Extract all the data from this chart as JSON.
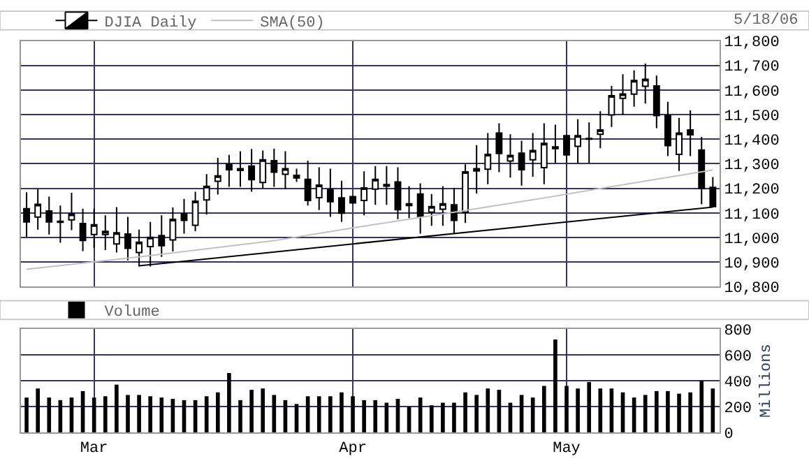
{
  "chart_data": [
    {
      "type": "candlestick",
      "legend": "top",
      "grid": true,
      "tick_labels": "y",
      "annotations": [
        "5/18/06"
      ],
      "categories": [
        null,
        null,
        null,
        null,
        null,
        null,
        null,
        null,
        null,
        null,
        null,
        null,
        null,
        null,
        null,
        null,
        null,
        null,
        null,
        null,
        null,
        null,
        null,
        null,
        null,
        null,
        null,
        null,
        null,
        null,
        null,
        null,
        null,
        null,
        null,
        null,
        null,
        null,
        null,
        null,
        null,
        null,
        null,
        null,
        null,
        null,
        null,
        null,
        null,
        null,
        null,
        null,
        null,
        null,
        null,
        null,
        null,
        null,
        null,
        null,
        null,
        null
      ],
      "ylim": [
        10800,
        11800
      ],
      "yticks": [
        {
          "value": 10800,
          "label": "10,800"
        },
        {
          "value": 10900,
          "label": "10,900"
        },
        {
          "value": 11000,
          "label": "11,000"
        },
        {
          "value": 11100,
          "label": "11,100"
        },
        {
          "value": 11200,
          "label": "11,200"
        },
        {
          "value": 11300,
          "label": "11,300"
        },
        {
          "value": 11400,
          "label": "11,400"
        },
        {
          "value": 11500,
          "label": "11,500"
        },
        {
          "value": 11600,
          "label": "11,600"
        },
        {
          "value": 11700,
          "label": "11,700"
        },
        {
          "value": 11800,
          "label": "11,800"
        }
      ],
      "series": [
        {
          "name": "DJIA Daily",
          "type": "candlestick",
          "color": "#000000",
          "ohlc": [
            [
              11117,
              11184,
              11003,
              11063
            ],
            [
              11083,
              11197,
              11032,
              11135
            ],
            [
              11108,
              11166,
              11012,
              11063
            ],
            [
              11066,
              11130,
              10979,
              11062
            ],
            [
              11072,
              11182,
              11030,
              11095
            ],
            [
              11057,
              11117,
              10945,
              10988
            ],
            [
              11012,
              11117,
              10958,
              11052
            ],
            [
              11012,
              11090,
              10949,
              11025
            ],
            [
              10974,
              11124,
              10939,
              11019
            ],
            [
              11014,
              11084,
              10907,
              10956
            ],
            [
              10939,
              11032,
              10882,
              10981
            ],
            [
              10963,
              11063,
              10882,
              11001
            ],
            [
              11008,
              11090,
              10921,
              10967
            ],
            [
              10990,
              11122,
              10943,
              11074
            ],
            [
              11097,
              11157,
              11016,
              11070
            ],
            [
              11050,
              11186,
              11026,
              11148
            ],
            [
              11153,
              11258,
              11093,
              11208
            ],
            [
              11229,
              11324,
              11175,
              11251
            ],
            [
              11298,
              11336,
              11206,
              11276
            ],
            [
              11280,
              11351,
              11206,
              11273
            ],
            [
              11291,
              11360,
              11186,
              11235
            ],
            [
              11224,
              11354,
              11199,
              11316
            ],
            [
              11313,
              11362,
              11206,
              11266
            ],
            [
              11257,
              11351,
              11197,
              11280
            ],
            [
              11253,
              11280,
              11226,
              11242
            ],
            [
              11237,
              11313,
              11130,
              11151
            ],
            [
              11162,
              11286,
              11112,
              11213
            ],
            [
              11195,
              11280,
              11084,
              11146
            ],
            [
              11161,
              11231,
              11063,
              11099
            ],
            [
              11166,
              11170,
              11137,
              11141
            ],
            [
              11151,
              11269,
              11090,
              11202
            ],
            [
              11197,
              11291,
              11133,
              11237
            ],
            [
              11209,
              11291,
              11133,
              11215
            ],
            [
              11226,
              11286,
              11075,
              11113
            ],
            [
              11137,
              11209,
              11079,
              11130
            ],
            [
              11177,
              11220,
              11016,
              11086
            ],
            [
              11103,
              11177,
              11048,
              11126
            ],
            [
              11115,
              11209,
              11048,
              11137
            ],
            [
              11133,
              11202,
              11017,
              11070
            ],
            [
              11103,
              11298,
              11059,
              11267
            ],
            [
              11280,
              11376,
              11179,
              11271
            ],
            [
              11278,
              11425,
              11217,
              11338
            ],
            [
              11425,
              11465,
              11266,
              11342
            ],
            [
              11311,
              11420,
              11244,
              11334
            ],
            [
              11343,
              11394,
              11211,
              11276
            ],
            [
              11316,
              11425,
              11247,
              11354
            ],
            [
              11284,
              11465,
              11217,
              11383
            ],
            [
              11362,
              11459,
              11302,
              11369
            ],
            [
              11414,
              11420,
              11302,
              11336
            ],
            [
              11371,
              11481,
              11302,
              11414
            ],
            [
              11400,
              11468,
              11302,
              11403
            ],
            [
              11420,
              11514,
              11363,
              11438
            ],
            [
              11499,
              11617,
              11450,
              11577
            ],
            [
              11566,
              11664,
              11499,
              11584
            ],
            [
              11583,
              11680,
              11532,
              11639
            ],
            [
              11615,
              11708,
              11545,
              11644
            ],
            [
              11617,
              11659,
              11445,
              11496
            ],
            [
              11496,
              11552,
              11331,
              11374
            ],
            [
              11338,
              11487,
              11271,
              11425
            ],
            [
              11438,
              11517,
              11331,
              11418
            ],
            [
              11356,
              11409,
              11135,
              11199
            ],
            [
              11204,
              11246,
              11126,
              11126
            ]
          ]
        },
        {
          "name": "SMA(50)",
          "type": "line",
          "color": "#c0c0c0",
          "values": [
            10871,
            null,
            null,
            null,
            null,
            null,
            null,
            null,
            null,
            null,
            10921,
            null,
            null,
            null,
            null,
            null,
            null,
            null,
            null,
            null,
            null,
            null,
            10987,
            null,
            null,
            null,
            null,
            null,
            null,
            11039,
            null,
            null,
            null,
            null,
            null,
            null,
            null,
            null,
            null,
            11110,
            null,
            null,
            null,
            null,
            null,
            null,
            11161,
            null,
            null,
            null,
            11192,
            null,
            null,
            null,
            null,
            null,
            null,
            null,
            null,
            null,
            null,
            11275
          ]
        },
        {
          "type": "line",
          "color": "#000000",
          "values": [
            null,
            null,
            null,
            null,
            null,
            null,
            null,
            null,
            null,
            null,
            10885,
            null,
            null,
            null,
            null,
            null,
            null,
            null,
            null,
            null,
            null,
            null,
            null,
            null,
            null,
            null,
            null,
            null,
            null,
            null,
            null,
            null,
            null,
            null,
            null,
            null,
            null,
            null,
            null,
            null,
            null,
            null,
            null,
            null,
            null,
            null,
            null,
            null,
            null,
            null,
            null,
            null,
            null,
            null,
            null,
            null,
            null,
            null,
            null,
            null,
            null,
            11124
          ]
        }
      ]
    },
    {
      "type": "bar",
      "legend": "top",
      "grid": true,
      "ylabel": "Millions",
      "categories": [
        null,
        null,
        null,
        null,
        null,
        null,
        "Mar",
        null,
        null,
        null,
        null,
        null,
        null,
        null,
        null,
        null,
        null,
        null,
        null,
        null,
        null,
        null,
        null,
        null,
        null,
        null,
        null,
        null,
        null,
        "Apr",
        null,
        null,
        null,
        null,
        null,
        null,
        null,
        null,
        null,
        null,
        null,
        null,
        null,
        null,
        null,
        null,
        null,
        null,
        "May",
        null,
        null,
        null,
        null,
        null,
        null,
        null,
        null,
        null,
        null,
        null,
        null,
        null
      ],
      "ylim": [
        0,
        800
      ],
      "yticks": [
        0,
        200,
        400,
        600,
        800
      ],
      "series": [
        {
          "name": "Volume",
          "color": "#000000",
          "values": [
            270,
            340,
            270,
            250,
            270,
            320,
            270,
            280,
            370,
            290,
            290,
            280,
            270,
            260,
            250,
            250,
            280,
            310,
            460,
            250,
            330,
            340,
            290,
            250,
            220,
            280,
            280,
            280,
            310,
            280,
            250,
            250,
            230,
            260,
            200,
            270,
            210,
            230,
            230,
            310,
            290,
            340,
            330,
            230,
            290,
            270,
            360,
            720,
            360,
            340,
            390,
            340,
            340,
            310,
            270,
            290,
            320,
            320,
            300,
            310,
            400,
            340
          ]
        }
      ]
    }
  ]
}
